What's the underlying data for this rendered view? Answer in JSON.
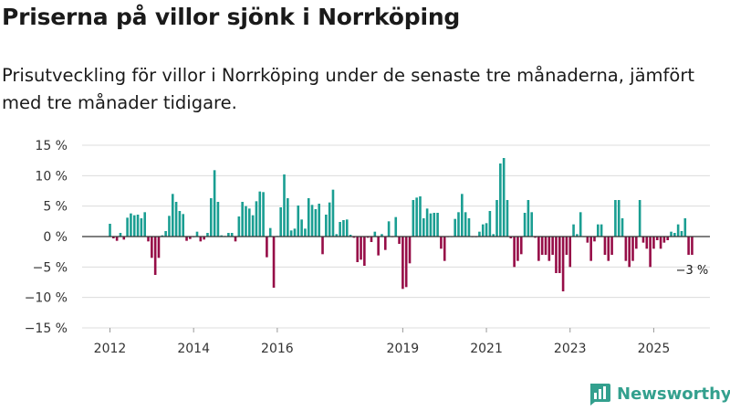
{
  "title": "Priserna på villor sjönk i Norrköping",
  "subtitle": "Prisutveckling för villor i Norrköping under de senaste tre månaderna, jämfört med tre månader tidigare.",
  "brand": "Newsworthy",
  "colors": {
    "positive": "#1a9e92",
    "negative": "#960d47",
    "brand": "#33a08e",
    "grid": "#dcdcdc",
    "axis": "#333333"
  },
  "chart_data": {
    "type": "bar",
    "title": "Priserna på villor sjönk i Norrköping",
    "xlabel": "",
    "ylabel": "",
    "ylim": [
      -15,
      15
    ],
    "yticks": [
      15,
      10,
      5,
      0,
      -5,
      -10,
      -15
    ],
    "ytick_labels": [
      "15 %",
      "10 %",
      "5 %",
      "0 %",
      "−5 %",
      "−10 %",
      "−15 %"
    ],
    "xticks": [
      {
        "label": "2012",
        "month_index": 0
      },
      {
        "label": "2014",
        "month_index": 24
      },
      {
        "label": "2016",
        "month_index": 48
      },
      {
        "label": "2019",
        "month_index": 84
      },
      {
        "label": "2021",
        "month_index": 108
      },
      {
        "label": "2023",
        "month_index": 132
      },
      {
        "label": "2025",
        "month_index": 156
      }
    ],
    "start": "2012-01",
    "frequency": "monthly",
    "values": [
      2.1,
      -0.3,
      -0.7,
      0.6,
      -0.5,
      3.1,
      3.8,
      3.5,
      3.6,
      3.0,
      4.0,
      -0.8,
      -3.5,
      -6.3,
      -3.5,
      0.2,
      0.9,
      3.4,
      7.0,
      5.7,
      4.2,
      3.7,
      -0.7,
      -0.4,
      -0.1,
      0.8,
      -0.8,
      -0.5,
      0.6,
      6.3,
      10.9,
      5.7,
      0.2,
      0.1,
      0.6,
      0.6,
      -0.8,
      3.3,
      5.7,
      5.0,
      4.6,
      3.5,
      5.8,
      7.4,
      7.3,
      -3.4,
      1.4,
      -8.4,
      0.1,
      4.8,
      10.2,
      6.3,
      1.0,
      1.3,
      5.1,
      2.8,
      1.3,
      6.3,
      5.2,
      4.5,
      5.4,
      -2.9,
      3.6,
      5.6,
      7.7,
      0.4,
      2.4,
      2.7,
      2.8,
      0.3,
      -0.2,
      -4.2,
      -3.8,
      -4.8,
      -0.2,
      -0.9,
      0.8,
      -3.1,
      0.4,
      -2.2,
      2.5,
      -0.1,
      3.2,
      -1.2,
      -8.6,
      -8.3,
      -4.4,
      6.0,
      6.4,
      6.6,
      3.0,
      4.6,
      3.8,
      3.9,
      3.9,
      -2.0,
      -4.0,
      -0.1,
      0.0,
      2.9,
      4.0,
      7.0,
      4.0,
      3.0,
      -0.1,
      -0.1,
      0.8,
      2.0,
      2.2,
      4.2,
      0.4,
      6.0,
      12.0,
      12.9,
      6.0,
      -0.3,
      -5.0,
      -4.0,
      -2.9,
      3.9,
      6.0,
      4.0,
      -0.2,
      -4.0,
      -3.0,
      -3.0,
      -4.0,
      -3.0,
      -6.0,
      -6.0,
      -9.0,
      -3.0,
      -5.0,
      2.0,
      0.4,
      4.0,
      0.0,
      -1.0,
      -4.0,
      -0.8,
      2.0,
      2.0,
      -3.0,
      -4.0,
      -3.0,
      6.0,
      6.0,
      3.0,
      -4.0,
      -5.0,
      -4.0,
      -2.0,
      6.0,
      -1.0,
      -2.0,
      -5.0,
      -2.0,
      -0.6,
      -2.0,
      -1.0,
      -0.6,
      0.8,
      0.6,
      2.0,
      0.9,
      3.0,
      -3.0,
      -3.0
    ],
    "end_label": "−3 %"
  }
}
